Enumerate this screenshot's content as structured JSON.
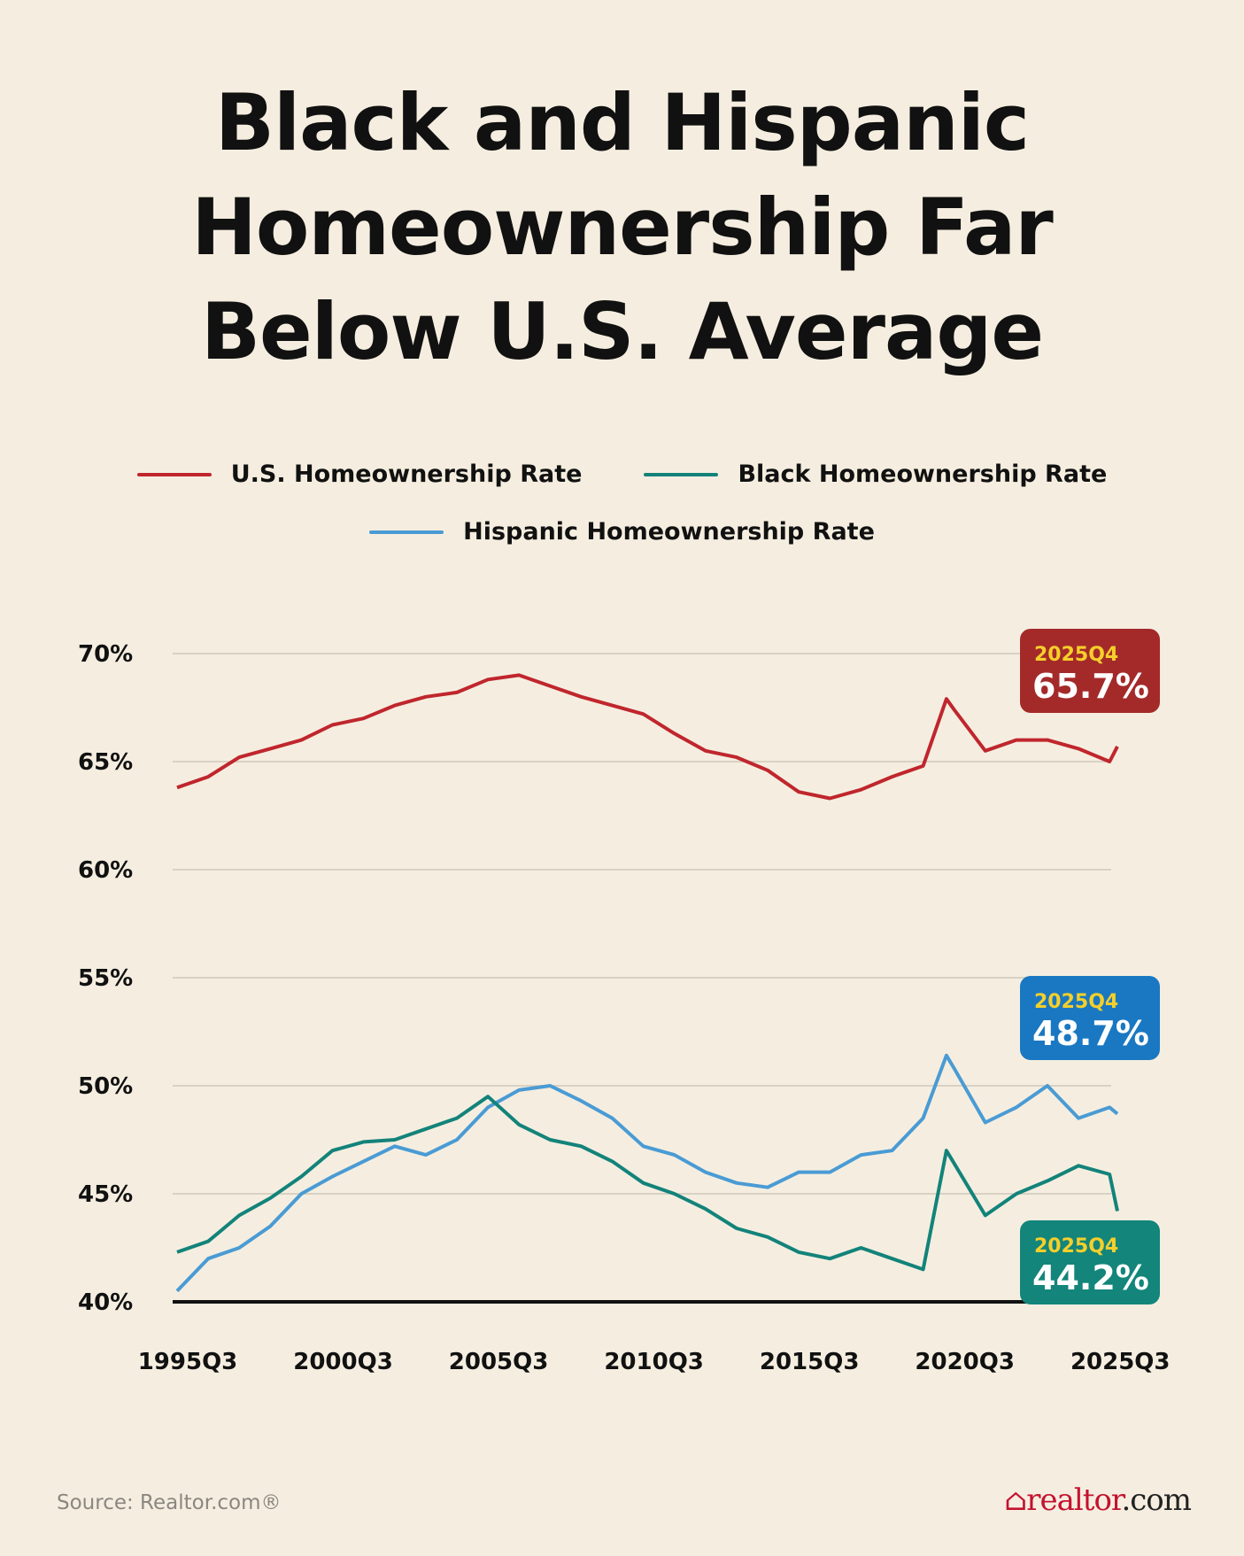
{
  "title_lines": [
    "Black and Hispanic",
    "Homeownership Far",
    "Below U.S. Average"
  ],
  "source": "Source: Realtor.com®",
  "logo": {
    "brand": "realtor",
    "suffix": ".com",
    "icon": "house-icon"
  },
  "colors": {
    "us": "#c0262d",
    "black": "#13837a",
    "hispanic": "#4a9bd4",
    "us_badge": "#a42a2a",
    "black_badge": "#13857b",
    "hispanic_badge": "#1a78c2",
    "badge_label": "#f5cf2a",
    "background": "#f5eee0"
  },
  "chart_data": {
    "type": "line",
    "title": "Black and Hispanic Homeownership Far Below U.S. Average",
    "xlabel": "",
    "ylabel": "",
    "ylim": [
      40,
      70
    ],
    "yticks": [
      "40%",
      "45%",
      "50%",
      "55%",
      "60%",
      "65%",
      "70%"
    ],
    "ytick_values": [
      40,
      45,
      50,
      55,
      60,
      65,
      70
    ],
    "xticks": [
      "1995Q3",
      "2000Q3",
      "2005Q3",
      "2010Q3",
      "2015Q3",
      "2020Q3",
      "2025Q3"
    ],
    "xrange": [
      "1995Q3",
      "2025Q4"
    ],
    "grid": "horizontal",
    "legend_placement": "top",
    "x": [
      "1995Q3",
      "1996Q3",
      "1997Q3",
      "1998Q3",
      "1999Q3",
      "2000Q3",
      "2001Q3",
      "2002Q3",
      "2003Q3",
      "2004Q3",
      "2005Q3",
      "2006Q3",
      "2007Q3",
      "2008Q3",
      "2009Q3",
      "2010Q3",
      "2011Q3",
      "2012Q3",
      "2013Q3",
      "2014Q3",
      "2015Q3",
      "2016Q3",
      "2017Q3",
      "2018Q3",
      "2019Q3",
      "2020Q2",
      "2020Q3",
      "2021Q3",
      "2022Q3",
      "2023Q3",
      "2024Q3",
      "2025Q3",
      "2025Q4"
    ],
    "series": [
      {
        "name": "U.S. Homeownership Rate",
        "key": "us",
        "values": [
          63.8,
          64.3,
          65.2,
          65.6,
          66.0,
          66.7,
          67.0,
          67.6,
          68.0,
          68.2,
          68.8,
          69.0,
          68.5,
          68.0,
          67.6,
          67.2,
          66.3,
          65.5,
          65.2,
          64.6,
          63.6,
          63.3,
          63.7,
          64.3,
          64.8,
          67.9,
          67.4,
          65.5,
          66.0,
          66.0,
          65.6,
          65.0,
          65.7
        ]
      },
      {
        "name": "Black Homeownership Rate",
        "key": "black",
        "values": [
          42.3,
          42.8,
          44.0,
          44.8,
          45.8,
          47.0,
          47.4,
          47.5,
          48.0,
          48.5,
          49.5,
          48.2,
          47.5,
          47.2,
          46.5,
          45.5,
          45.0,
          44.3,
          43.4,
          43.0,
          42.3,
          42.0,
          42.5,
          42.0,
          41.5,
          47.0,
          46.4,
          44.0,
          45.0,
          45.6,
          46.3,
          45.9,
          44.2
        ]
      },
      {
        "name": "Hispanic Homeownership Rate",
        "key": "hispanic",
        "values": [
          40.5,
          42.0,
          42.5,
          43.5,
          45.0,
          45.8,
          46.5,
          47.2,
          46.8,
          47.5,
          49.0,
          49.8,
          50.0,
          49.3,
          48.5,
          47.2,
          46.8,
          46.0,
          45.5,
          45.3,
          46.0,
          46.0,
          46.8,
          47.0,
          48.5,
          51.4,
          50.8,
          48.3,
          49.0,
          50.0,
          48.5,
          49.0,
          48.7
        ]
      }
    ],
    "annotations": [
      {
        "series": "us",
        "label": "2025Q4",
        "value": "65.7%"
      },
      {
        "series": "hispanic",
        "label": "2025Q4",
        "value": "48.7%"
      },
      {
        "series": "black",
        "label": "2025Q4",
        "value": "44.2%"
      }
    ]
  }
}
